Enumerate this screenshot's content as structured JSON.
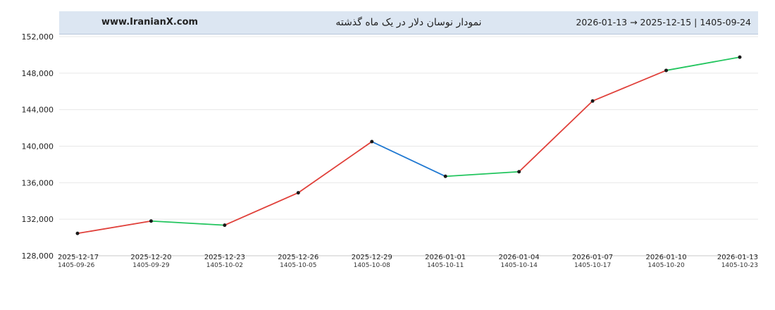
{
  "header": {
    "site": "www.IranianX.com",
    "title": "نمودار نوسان دلار در یک ماه گذشته",
    "range": "2026-01-13 → 2025-12-15 | 1405-09-24"
  },
  "chart_data": {
    "type": "line",
    "ylim": [
      128000,
      152000
    ],
    "yticks": [
      128000,
      132000,
      136000,
      140000,
      144000,
      148000,
      152000
    ],
    "ytick_labels": [
      "128,000",
      "132,000",
      "136,000",
      "140,000",
      "144,000",
      "148,000",
      "152,000"
    ],
    "x_labels_gregorian": [
      "2025-12-17",
      "2025-12-20",
      "2025-12-23",
      "2025-12-26",
      "2025-12-29",
      "2026-01-01",
      "2026-01-04",
      "2026-01-07",
      "2026-01-10",
      "2026-01-13"
    ],
    "x_labels_jalali": [
      "1405-09-26",
      "1405-09-29",
      "1405-10-02",
      "1405-10-05",
      "1405-10-08",
      "1405-10-11",
      "1405-10-14",
      "1405-10-17",
      "1405-10-20",
      "1405-10-23"
    ],
    "points": [
      {
        "date": "2025-12-17",
        "value": 130450
      },
      {
        "date": "2025-12-20",
        "value": 131800
      },
      {
        "date": "2025-12-23",
        "value": 131350
      },
      {
        "date": "2025-12-26",
        "value": 134900
      },
      {
        "date": "2025-12-29",
        "value": 140500
      },
      {
        "date": "2026-01-01",
        "value": 136700
      },
      {
        "date": "2026-01-04",
        "value": 137200
      },
      {
        "date": "2026-01-07",
        "value": 144950
      },
      {
        "date": "2026-01-10",
        "value": 148300
      },
      {
        "date": "2026-01-13",
        "value": 149750
      }
    ],
    "segment_colors": [
      "#e0403a",
      "#22c55e",
      "#e0403a",
      "#e0403a",
      "#1f78d1",
      "#22c55e",
      "#e0403a",
      "#e0403a",
      "#22c55e"
    ],
    "grid": true
  }
}
